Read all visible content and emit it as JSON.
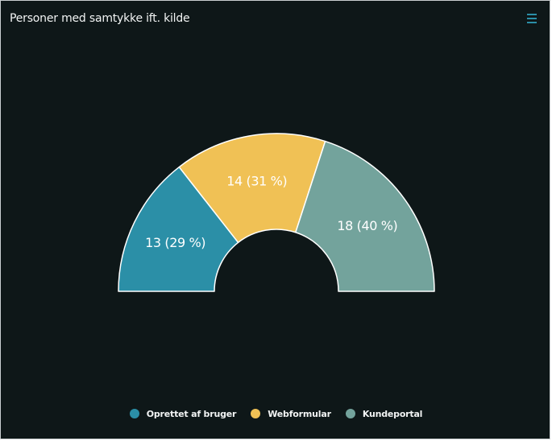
{
  "card": {
    "title": "Personer med samtykke ift. kilde",
    "menu_icon": "hamburger-menu-icon"
  },
  "colors": {
    "background": "#0e1718",
    "text": "#f2f4f4",
    "accent": "#2b8fa7"
  },
  "chart_data": {
    "type": "pie",
    "variant": "semi-donut",
    "title": "Personer med samtykke ift. kilde",
    "legend_position": "bottom",
    "series": [
      {
        "name": "Oprettet af bruger",
        "value": 13,
        "label": "13 (29 %)",
        "color": "#2b8fa7"
      },
      {
        "name": "Webformular",
        "value": 14,
        "label": "14 (31 %)",
        "color": "#f0c155"
      },
      {
        "name": "Kundeportal",
        "value": 18,
        "label": "18 (40 %)",
        "color": "#73a39c"
      }
    ]
  }
}
